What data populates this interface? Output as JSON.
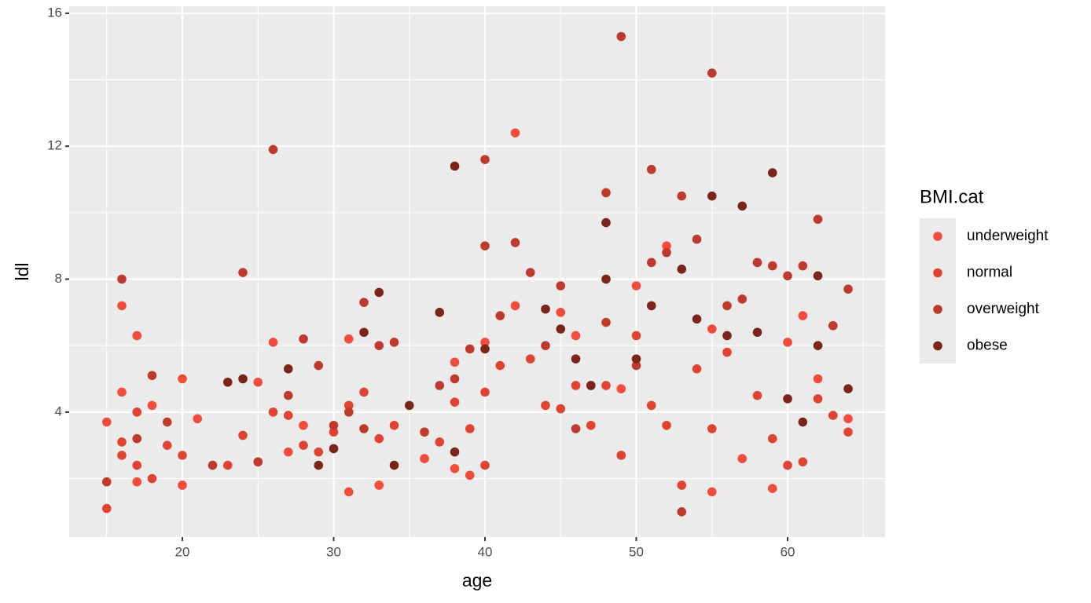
{
  "chart_data": {
    "type": "scatter",
    "x_label": "age",
    "y_label": "ldl",
    "xlim": [
      12.52,
      66.44
    ],
    "ylim": [
      0.24,
      16.21
    ],
    "xticks": [
      20,
      30,
      40,
      50,
      60
    ],
    "yticks": [
      4,
      8,
      12,
      16
    ],
    "x_minor_ticks": [
      15,
      25,
      35,
      45,
      55,
      65
    ],
    "y_minor_ticks": [
      2,
      6,
      10,
      14
    ],
    "grid": true,
    "legend_title": "BMI.cat",
    "legend_position": "right",
    "series": [
      {
        "name": "underweight",
        "color": "#f24c3d",
        "x": [
          15,
          16,
          16,
          17,
          17,
          18,
          20,
          20,
          21,
          25,
          26,
          27,
          28,
          31,
          31,
          33,
          36,
          38,
          38,
          39,
          40,
          42,
          42,
          45,
          46,
          49,
          50,
          52,
          55,
          55,
          57,
          59,
          60,
          61,
          62,
          64
        ],
        "values": [
          3.7,
          4.6,
          7.2,
          6.3,
          1.9,
          4.2,
          5.0,
          1.8,
          3.8,
          4.9,
          6.1,
          2.8,
          3.6,
          6.2,
          1.6,
          1.8,
          2.6,
          5.5,
          2.3,
          2.1,
          6.1,
          12.4,
          7.2,
          7.0,
          6.3,
          4.7,
          7.8,
          9.0,
          6.5,
          1.6,
          2.6,
          1.7,
          6.1,
          6.9,
          5.0,
          3.8
        ]
      },
      {
        "name": "normal",
        "color": "#e0432f",
        "x": [
          15,
          16,
          16,
          17,
          17,
          18,
          19,
          20,
          23,
          24,
          25,
          26,
          27,
          28,
          29,
          30,
          31,
          32,
          33,
          34,
          37,
          38,
          39,
          40,
          40,
          41,
          43,
          44,
          45,
          46,
          47,
          48,
          49,
          50,
          51,
          52,
          53,
          54,
          55,
          56,
          58,
          59,
          60,
          61,
          62,
          63,
          64
        ],
        "values": [
          1.1,
          3.1,
          2.7,
          2.4,
          4.0,
          2.0,
          3.0,
          2.7,
          2.4,
          3.3,
          2.5,
          4.0,
          3.9,
          3.0,
          2.8,
          3.4,
          4.2,
          4.6,
          3.2,
          3.6,
          3.1,
          4.3,
          3.5,
          2.4,
          4.6,
          5.4,
          5.6,
          4.2,
          4.1,
          4.8,
          3.6,
          4.8,
          2.7,
          6.3,
          4.2,
          3.6,
          1.8,
          5.3,
          3.5,
          5.8,
          4.5,
          3.2,
          2.4,
          2.5,
          4.4,
          3.9,
          3.4
        ]
      },
      {
        "name": "overweight",
        "color": "#bd3a2c",
        "x": [
          15,
          16,
          17,
          18,
          19,
          22,
          24,
          25,
          26,
          27,
          28,
          29,
          30,
          31,
          32,
          32,
          33,
          34,
          36,
          37,
          38,
          39,
          40,
          40,
          41,
          42,
          43,
          44,
          45,
          46,
          47,
          48,
          48,
          49,
          50,
          51,
          51,
          52,
          53,
          53,
          54,
          55,
          56,
          57,
          58,
          59,
          60,
          61,
          62,
          63,
          64
        ],
        "values": [
          1.9,
          8.0,
          3.2,
          5.1,
          3.7,
          2.4,
          8.2,
          2.5,
          11.9,
          4.5,
          6.2,
          5.4,
          3.6,
          4.0,
          7.3,
          3.5,
          6.0,
          6.1,
          3.4,
          4.8,
          5.0,
          5.9,
          11.6,
          9.0,
          6.9,
          9.1,
          8.2,
          6.0,
          7.8,
          3.5,
          4.8,
          10.6,
          6.7,
          15.3,
          5.4,
          11.3,
          8.5,
          8.8,
          10.5,
          1.0,
          9.2,
          14.2,
          7.2,
          7.4,
          8.5,
          8.4,
          8.1,
          8.4,
          9.8,
          6.6,
          7.7
        ]
      },
      {
        "name": "obese",
        "color": "#7b2519",
        "x": [
          38,
          59,
          55,
          57,
          48,
          53,
          62,
          48,
          33,
          37,
          44,
          23,
          24,
          30,
          29,
          34,
          38,
          40,
          45,
          46,
          51,
          54,
          56,
          58,
          60,
          61,
          64,
          62,
          27,
          32,
          47,
          50,
          35
        ],
        "values": [
          11.4,
          11.2,
          10.5,
          10.2,
          9.7,
          8.3,
          8.1,
          8.0,
          7.6,
          7.0,
          7.1,
          4.9,
          5.0,
          2.9,
          2.4,
          2.4,
          2.8,
          5.9,
          6.5,
          5.6,
          7.2,
          6.8,
          6.3,
          6.4,
          4.4,
          3.7,
          4.7,
          6.0,
          5.3,
          6.4,
          4.8,
          5.6,
          4.2
        ]
      }
    ]
  }
}
